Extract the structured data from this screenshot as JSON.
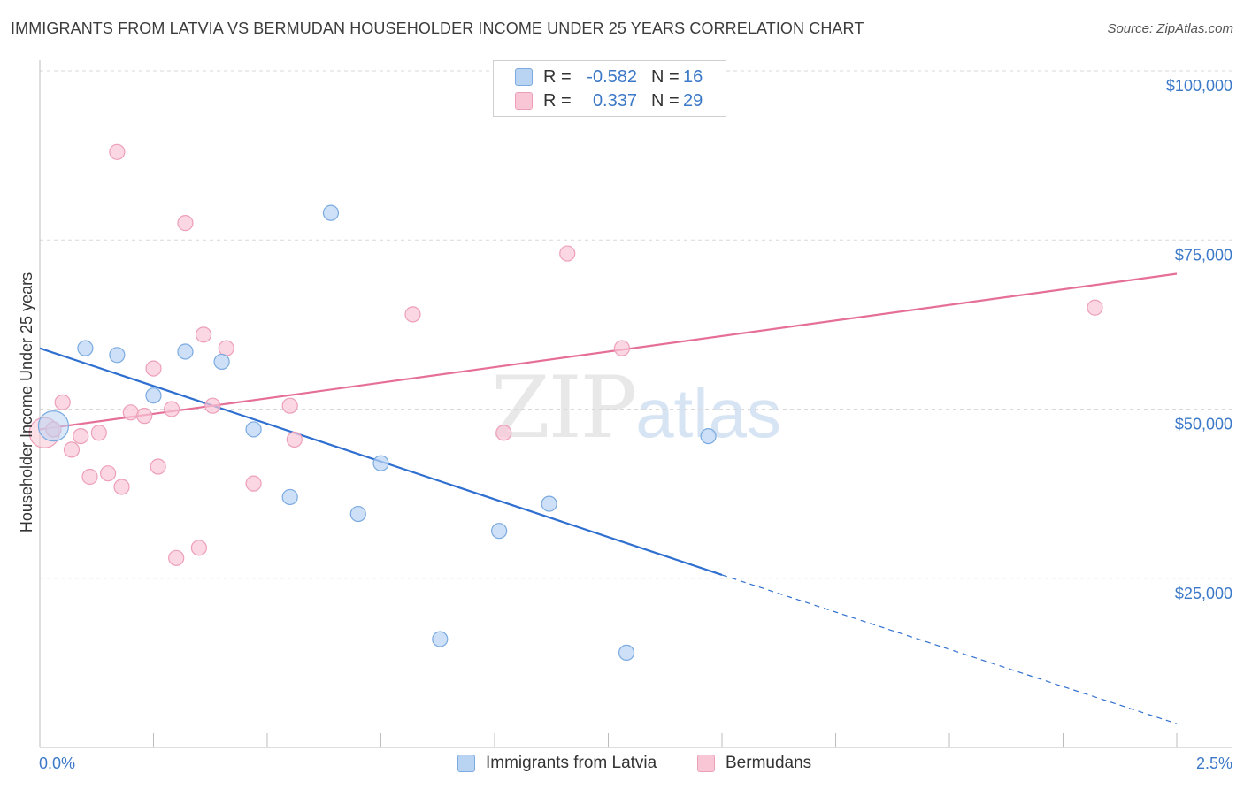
{
  "title": "IMMIGRANTS FROM LATVIA VS BERMUDAN HOUSEHOLDER INCOME UNDER 25 YEARS CORRELATION CHART",
  "source": "Source: ZipAtlas.com",
  "watermark": {
    "zip": "ZIP",
    "atlas": "atlas"
  },
  "legend": {
    "rows": [
      {
        "r_label": "R =",
        "r_value": "-0.582",
        "n_label": "N =",
        "n_value": "16"
      },
      {
        "r_label": "R =",
        "r_value": "0.337",
        "n_label": "N =",
        "n_value": "29"
      }
    ]
  },
  "bottom_legend": [
    "Immigrants from Latvia",
    "Bermudans"
  ],
  "colors": {
    "latvia_fill": "#b9d3f3",
    "latvia_stroke": "#7aaae0",
    "latvia_line": "#2f6fcf",
    "bermudan_fill": "#f8c6d5",
    "bermudan_stroke": "#ee9fb8",
    "bermudan_line": "#e66f97",
    "axis_text": "#3b78c8",
    "grid": "#d9d9d9"
  },
  "chart_data": {
    "type": "scatter",
    "title": "IMMIGRANTS FROM LATVIA VS BERMUDAN HOUSEHOLDER INCOME UNDER 25 YEARS CORRELATION CHART",
    "xlabel": "",
    "ylabel": "Householder Income Under 25 years",
    "xlim": [
      0,
      2.5
    ],
    "ylim": [
      0,
      100000
    ],
    "x_tick_labels": [
      "0.0%",
      "2.5%"
    ],
    "y_tick_values": [
      25000,
      50000,
      75000,
      100000
    ],
    "y_tick_labels": [
      "$25,000",
      "$50,000",
      "$75,000",
      "$100,000"
    ],
    "grid": true,
    "series": [
      {
        "name": "Immigrants from Latvia",
        "points": [
          {
            "x": 0.03,
            "y": 47500,
            "big": true
          },
          {
            "x": 0.1,
            "y": 59000
          },
          {
            "x": 0.17,
            "y": 58000
          },
          {
            "x": 0.25,
            "y": 52000
          },
          {
            "x": 0.32,
            "y": 58500
          },
          {
            "x": 0.4,
            "y": 57000
          },
          {
            "x": 0.47,
            "y": 47000
          },
          {
            "x": 0.55,
            "y": 37000
          },
          {
            "x": 0.64,
            "y": 79000
          },
          {
            "x": 0.7,
            "y": 34500
          },
          {
            "x": 0.75,
            "y": 42000
          },
          {
            "x": 0.88,
            "y": 16000
          },
          {
            "x": 1.01,
            "y": 32000
          },
          {
            "x": 1.12,
            "y": 36000
          },
          {
            "x": 1.29,
            "y": 14000
          },
          {
            "x": 1.47,
            "y": 46000
          }
        ],
        "trend": {
          "x0": 0.0,
          "y0": 59000,
          "x1": 1.5,
          "y1": 25500,
          "dash_to_x": 2.5,
          "dash_to_y": 3500
        }
      },
      {
        "name": "Bermudans",
        "points": [
          {
            "x": 0.01,
            "y": 46500,
            "big": true
          },
          {
            "x": 0.03,
            "y": 47000
          },
          {
            "x": 0.05,
            "y": 51000
          },
          {
            "x": 0.07,
            "y": 44000
          },
          {
            "x": 0.09,
            "y": 46000
          },
          {
            "x": 0.11,
            "y": 40000
          },
          {
            "x": 0.13,
            "y": 46500
          },
          {
            "x": 0.15,
            "y": 40500
          },
          {
            "x": 0.17,
            "y": 88000
          },
          {
            "x": 0.18,
            "y": 38500
          },
          {
            "x": 0.2,
            "y": 49500
          },
          {
            "x": 0.23,
            "y": 49000
          },
          {
            "x": 0.25,
            "y": 56000
          },
          {
            "x": 0.26,
            "y": 41500
          },
          {
            "x": 0.29,
            "y": 50000
          },
          {
            "x": 0.3,
            "y": 28000
          },
          {
            "x": 0.32,
            "y": 77500
          },
          {
            "x": 0.35,
            "y": 29500
          },
          {
            "x": 0.36,
            "y": 61000
          },
          {
            "x": 0.38,
            "y": 50500
          },
          {
            "x": 0.41,
            "y": 59000
          },
          {
            "x": 0.47,
            "y": 39000
          },
          {
            "x": 0.55,
            "y": 50500
          },
          {
            "x": 0.56,
            "y": 45500
          },
          {
            "x": 0.82,
            "y": 64000
          },
          {
            "x": 1.02,
            "y": 46500
          },
          {
            "x": 1.16,
            "y": 73000
          },
          {
            "x": 1.28,
            "y": 59000
          },
          {
            "x": 2.32,
            "y": 65000
          }
        ],
        "trend": {
          "x0": 0.0,
          "y0": 47000,
          "x1": 2.5,
          "y1": 70000
        }
      }
    ]
  }
}
